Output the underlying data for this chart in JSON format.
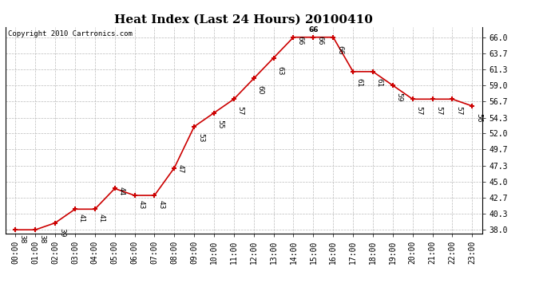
{
  "title": "Heat Index (Last 24 Hours) 20100410",
  "copyright": "Copyright 2010 Cartronics.com",
  "hours": [
    "00:00",
    "01:00",
    "02:00",
    "03:00",
    "04:00",
    "05:00",
    "06:00",
    "07:00",
    "08:00",
    "09:00",
    "10:00",
    "11:00",
    "12:00",
    "13:00",
    "14:00",
    "15:00",
    "16:00",
    "17:00",
    "18:00",
    "19:00",
    "20:00",
    "21:00",
    "22:00",
    "23:00"
  ],
  "heat_values": [
    38,
    38,
    39,
    41,
    41,
    44,
    43,
    43,
    47,
    53,
    55,
    57,
    60,
    63,
    66,
    66,
    66,
    61,
    61,
    59,
    57,
    57,
    57,
    56
  ],
  "yticks": [
    38.0,
    40.3,
    42.7,
    45.0,
    47.3,
    49.7,
    52.0,
    54.3,
    56.7,
    59.0,
    61.3,
    63.7,
    66.0
  ],
  "ylim": [
    37.5,
    67.5
  ],
  "line_color": "#cc0000",
  "bg_color": "#ffffff",
  "grid_color": "#bbbbbb",
  "title_fontsize": 11,
  "tick_fontsize": 7,
  "annot_fontsize": 6.5,
  "copyright_fontsize": 6.5
}
